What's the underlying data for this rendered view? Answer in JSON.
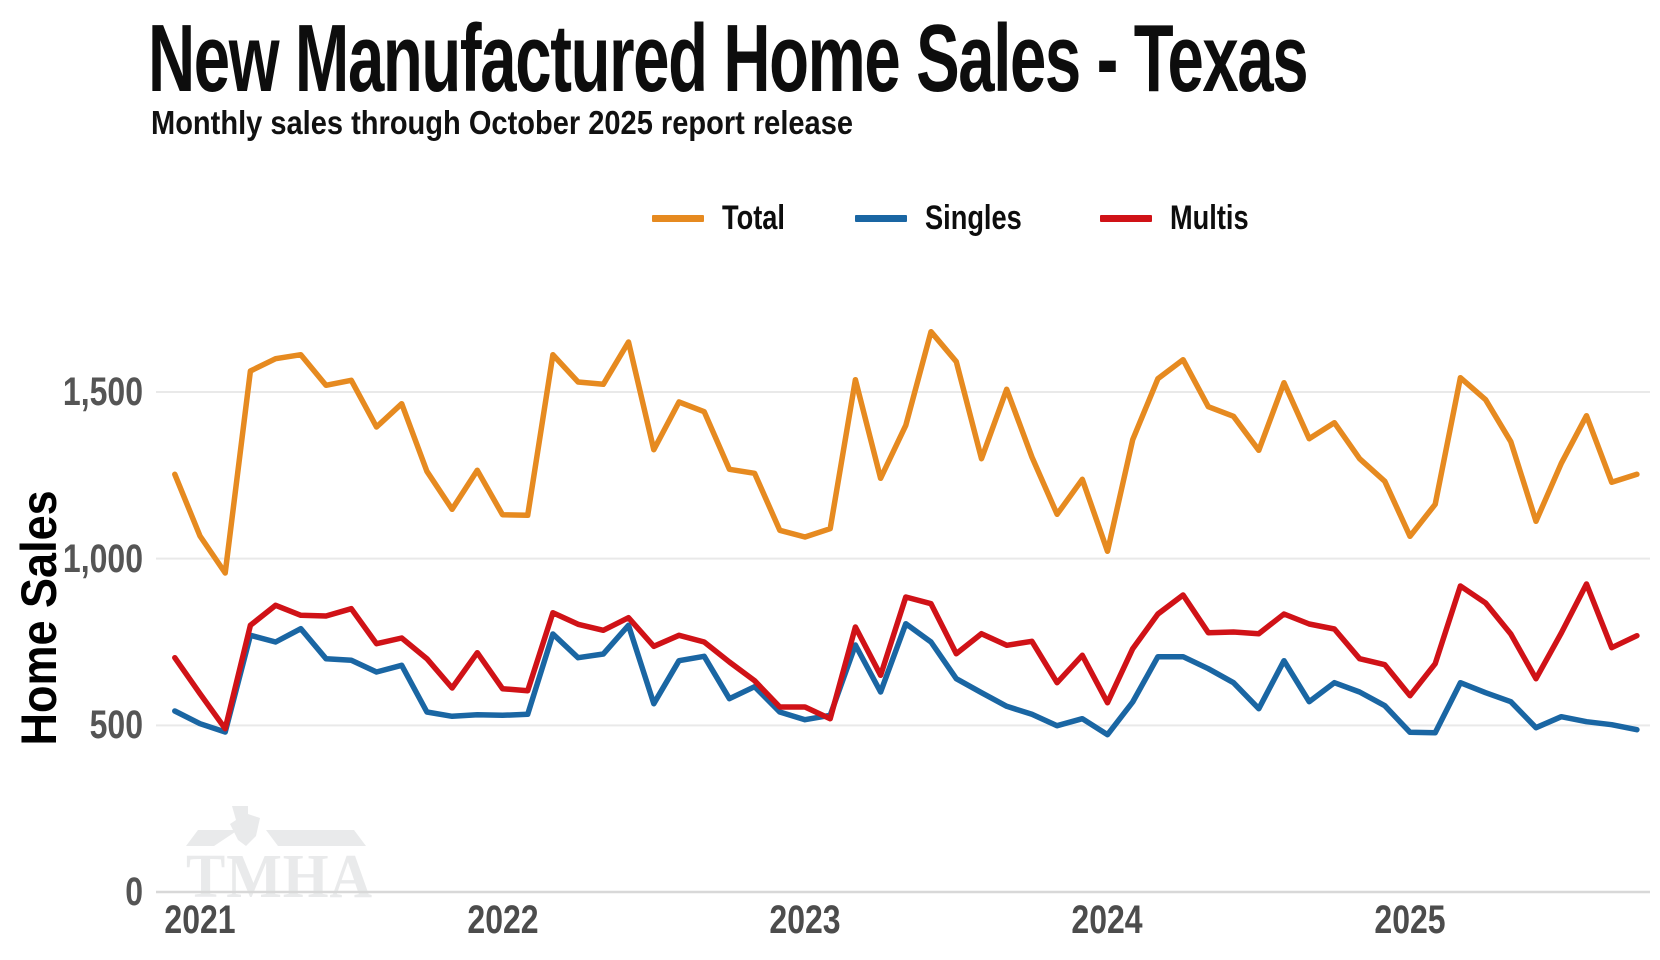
{
  "header": {
    "title": "New Manufactured Home Sales - Texas",
    "subtitle": "Monthly sales through October 2025 report release"
  },
  "legend": [
    {
      "label": "Total",
      "color": "#E68A20"
    },
    {
      "label": "Singles",
      "color": "#1A66A3"
    },
    {
      "label": "Multis",
      "color": "#D01217"
    }
  ],
  "y_axis": {
    "label": "Home Sales",
    "ticks": [
      "0",
      "500",
      "1,000",
      "1,500"
    ],
    "tick_values": [
      0,
      500,
      1000,
      1500
    ]
  },
  "x_axis": {
    "ticks": [
      "2021",
      "2022",
      "2023",
      "2024",
      "2025"
    ]
  },
  "watermark": {
    "text": "TMHA"
  },
  "chart_data": {
    "type": "line",
    "title": "New Manufactured Home Sales - Texas",
    "subtitle": "Monthly sales through October 2025 report release",
    "ylabel": "Home Sales",
    "ylim": [
      0,
      1750
    ],
    "grid": "horizontal",
    "legend_position": "top",
    "x": [
      "Dec 2020",
      "Jan 2021",
      "Feb 2021",
      "Mar 2021",
      "Apr 2021",
      "May 2021",
      "Jun 2021",
      "Jul 2021",
      "Aug 2021",
      "Sep 2021",
      "Oct 2021",
      "Nov 2021",
      "Dec 2021",
      "Jan 2022",
      "Feb 2022",
      "Mar 2022",
      "Apr 2022",
      "May 2022",
      "Jun 2022",
      "Jul 2022",
      "Aug 2022",
      "Sep 2022",
      "Oct 2022",
      "Nov 2022",
      "Dec 2022",
      "Jan 2023",
      "Feb 2023",
      "Mar 2023",
      "Apr 2023",
      "May 2023",
      "Jun 2023",
      "Jul 2023",
      "Aug 2023",
      "Sep 2023",
      "Oct 2023",
      "Nov 2023",
      "Dec 2023",
      "Jan 2024",
      "Feb 2024",
      "Mar 2024",
      "Apr 2024",
      "May 2024",
      "Jun 2024",
      "Jul 2024",
      "Aug 2024",
      "Sep 2024",
      "Oct 2024",
      "Nov 2024",
      "Dec 2024",
      "Jan 2025",
      "Feb 2025",
      "Mar 2025",
      "Apr 2025",
      "May 2025",
      "Jun 2025",
      "Jul 2025",
      "Aug 2025",
      "Sep 2025",
      "Oct 2025"
    ],
    "series": [
      {
        "name": "Total",
        "color": "#E68A20",
        "values": [
          1253,
          1068,
          957,
          1563,
          1600,
          1612,
          1520,
          1535,
          1395,
          1465,
          1262,
          1148,
          1265,
          1132,
          1130,
          1612,
          1530,
          1523,
          1650,
          1327,
          1470,
          1441,
          1268,
          1256,
          1085,
          1065,
          1090,
          1537,
          1241,
          1400,
          1681,
          1591,
          1300,
          1508,
          1305,
          1133,
          1238,
          1022,
          1357,
          1540,
          1597,
          1456,
          1427,
          1325,
          1528,
          1360,
          1408,
          1300,
          1232,
          1067,
          1163,
          1543,
          1477,
          1351,
          1112,
          1286,
          1429,
          1229,
          1253
        ]
      },
      {
        "name": "Singles",
        "color": "#1A66A3",
        "values": [
          543,
          505,
          480,
          770,
          750,
          790,
          700,
          695,
          660,
          680,
          540,
          527,
          532,
          530,
          533,
          774,
          703,
          714,
          800,
          565,
          694,
          707,
          580,
          616,
          540,
          517,
          530,
          741,
          600,
          805,
          750,
          640,
          598,
          557,
          533,
          499,
          520,
          472,
          570,
          706,
          706,
          670,
          628,
          550,
          694,
          571,
          628,
          600,
          559,
          479,
          478,
          628,
          598,
          571,
          493,
          526,
          511,
          502,
          487
        ]
      },
      {
        "name": "Multis",
        "color": "#D01217",
        "values": [
          703,
          595,
          490,
          800,
          860,
          830,
          828,
          850,
          745,
          762,
          700,
          612,
          718,
          610,
          604,
          838,
          803,
          785,
          823,
          737,
          770,
          750,
          690,
          634,
          555,
          555,
          520,
          795,
          650,
          885,
          865,
          715,
          775,
          740,
          752,
          628,
          710,
          568,
          730,
          834,
          891,
          778,
          780,
          775,
          834,
          804,
          789,
          700,
          682,
          589,
          685,
          918,
          867,
          774,
          640,
          777,
          924,
          733,
          769
        ]
      }
    ]
  }
}
